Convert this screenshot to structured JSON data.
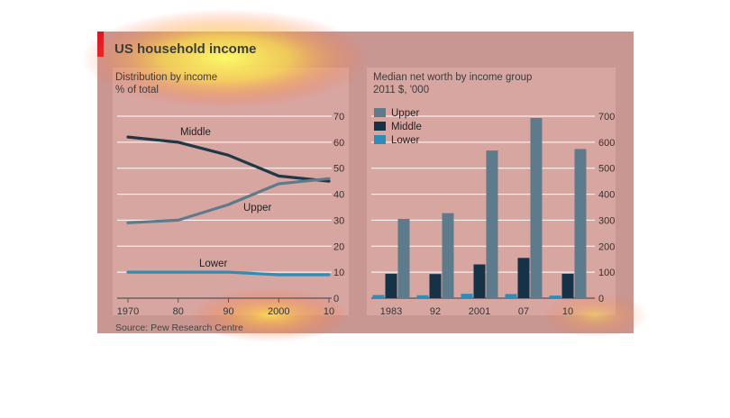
{
  "title": "US household income",
  "source": "Source: Pew Research Centre",
  "chart_data": [
    {
      "type": "line",
      "title": "Distribution by income",
      "subtitle": "% of total",
      "x": [
        1970,
        1980,
        1990,
        2000,
        2010
      ],
      "xticks": [
        "1970",
        "80",
        "90",
        "2000",
        "10"
      ],
      "ylim": [
        0,
        70
      ],
      "yticks": [
        0,
        10,
        20,
        30,
        40,
        50,
        60,
        70
      ],
      "grid": true,
      "series": [
        {
          "name": "Middle",
          "color": "#1f3848",
          "values": [
            62,
            60,
            55,
            47,
            45
          ]
        },
        {
          "name": "Upper",
          "color": "#5e7b8c",
          "values": [
            29,
            30,
            36,
            44,
            46
          ]
        },
        {
          "name": "Lower",
          "color": "#2e8db8",
          "values": [
            10,
            10,
            10,
            9,
            9
          ]
        }
      ]
    },
    {
      "type": "bar",
      "title": "Median net worth by income group",
      "subtitle": "2011 $, '000",
      "categories": [
        "1983",
        "92",
        "2001",
        "07",
        "10"
      ],
      "ylim": [
        0,
        700
      ],
      "yticks": [
        0,
        100,
        200,
        300,
        400,
        500,
        600,
        700
      ],
      "grid": true,
      "legend": "top-left",
      "series": [
        {
          "name": "Lower",
          "color": "#2e8db8",
          "values": [
            12,
            11,
            17,
            16,
            10
          ]
        },
        {
          "name": "Middle",
          "color": "#163246",
          "values": [
            94,
            93,
            130,
            155,
            94
          ]
        },
        {
          "name": "Upper",
          "color": "#5e7b8c",
          "values": [
            305,
            327,
            568,
            693,
            574
          ]
        }
      ]
    }
  ]
}
